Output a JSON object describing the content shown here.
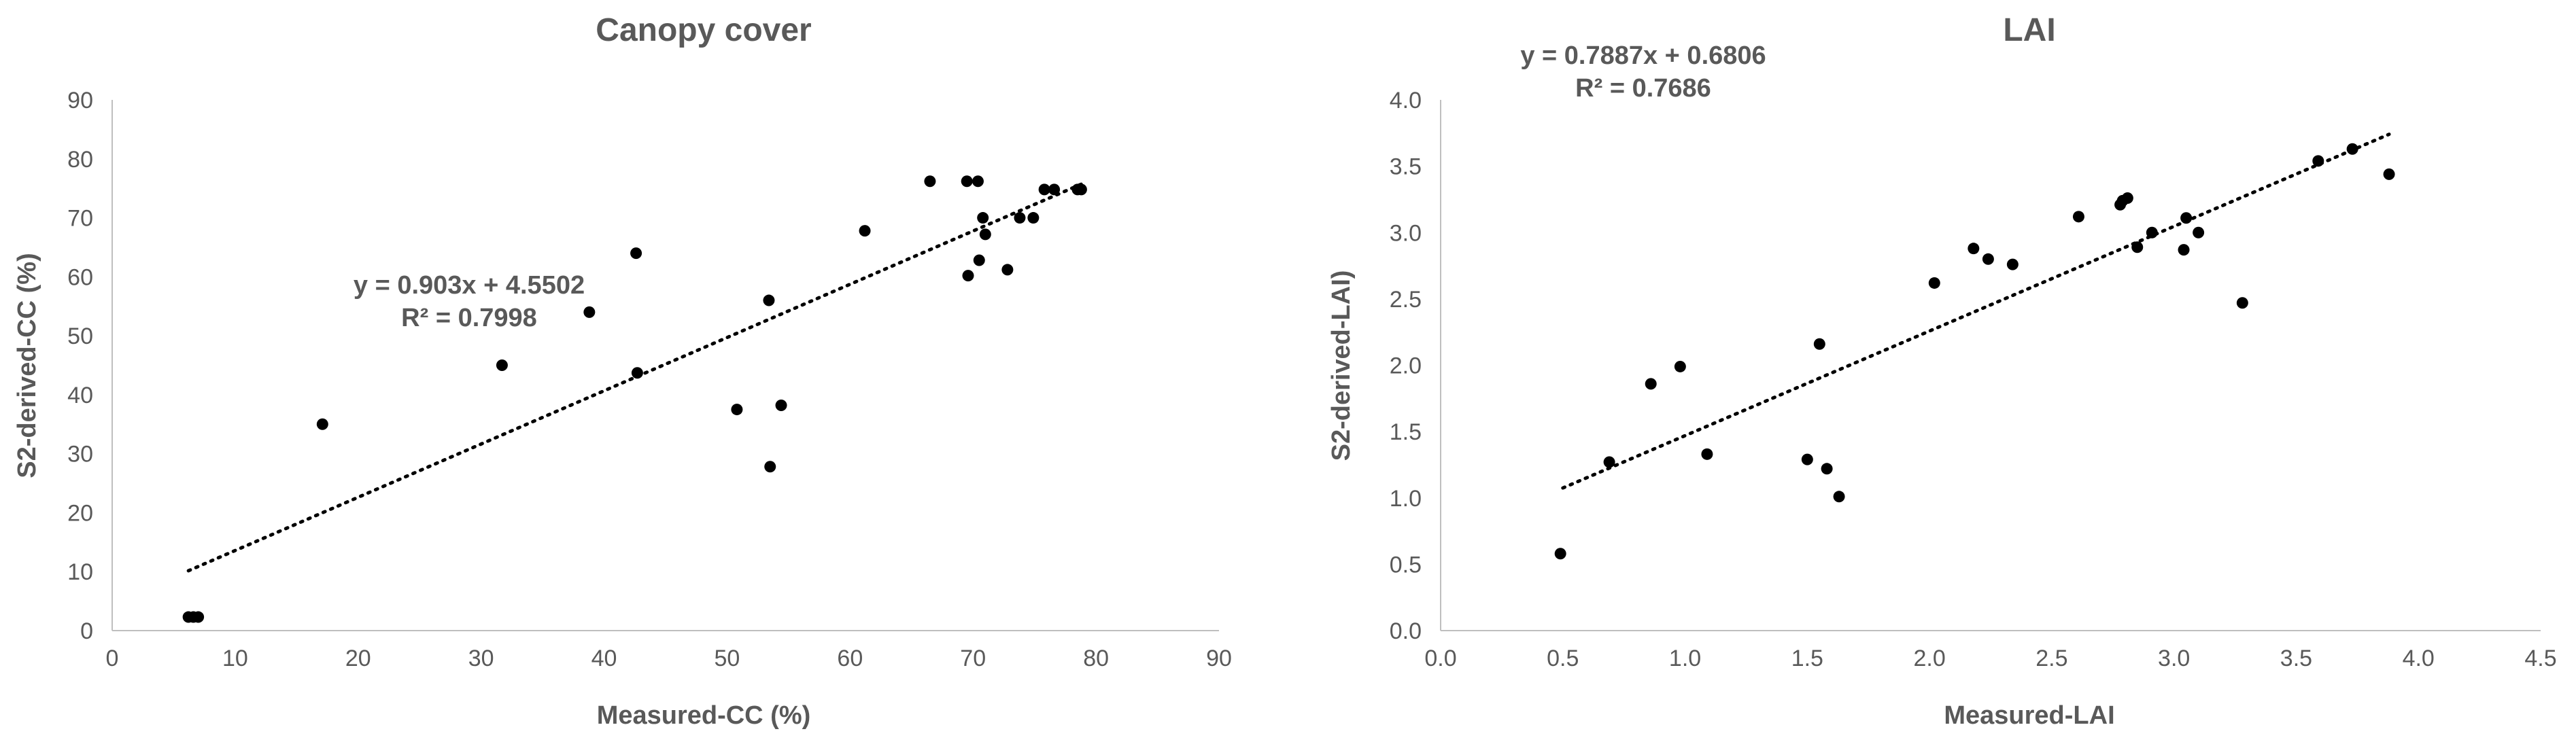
{
  "chart_data": [
    {
      "type": "scatter",
      "title": "Canopy cover",
      "xlabel": "Measured-CC (%)",
      "ylabel": "S2-derived-CC (%)",
      "xlim": [
        0,
        90
      ],
      "ylim": [
        0,
        90
      ],
      "xticks": [
        "0",
        "10",
        "20",
        "30",
        "40",
        "50",
        "60",
        "70",
        "80",
        "90"
      ],
      "yticks": [
        "0",
        "10",
        "20",
        "30",
        "40",
        "50",
        "60",
        "70",
        "80",
        "90"
      ],
      "grid": false,
      "trendline": {
        "slope": 0.903,
        "intercept": 4.5502,
        "x_range": [
          6.2,
          79
        ]
      },
      "equation": "y = 0.903x + 4.5502",
      "r2": "R² = 0.7998",
      "points": [
        {
          "x": 6.2,
          "y": 2.3
        },
        {
          "x": 6.6,
          "y": 2.3
        },
        {
          "x": 7.0,
          "y": 2.3
        },
        {
          "x": 17.1,
          "y": 35.0
        },
        {
          "x": 31.7,
          "y": 45.0
        },
        {
          "x": 38.8,
          "y": 54.0
        },
        {
          "x": 42.6,
          "y": 64.0
        },
        {
          "x": 42.7,
          "y": 43.7
        },
        {
          "x": 50.8,
          "y": 37.5
        },
        {
          "x": 53.4,
          "y": 56.0
        },
        {
          "x": 53.5,
          "y": 27.8
        },
        {
          "x": 54.4,
          "y": 38.2
        },
        {
          "x": 61.2,
          "y": 67.8
        },
        {
          "x": 66.5,
          "y": 76.2
        },
        {
          "x": 69.5,
          "y": 76.2
        },
        {
          "x": 69.6,
          "y": 60.2
        },
        {
          "x": 70.4,
          "y": 76.2
        },
        {
          "x": 70.5,
          "y": 62.8
        },
        {
          "x": 70.8,
          "y": 70.0
        },
        {
          "x": 71.0,
          "y": 67.2
        },
        {
          "x": 72.8,
          "y": 61.2
        },
        {
          "x": 73.8,
          "y": 70.0
        },
        {
          "x": 74.9,
          "y": 70.0
        },
        {
          "x": 75.8,
          "y": 74.8
        },
        {
          "x": 76.6,
          "y": 74.8
        },
        {
          "x": 78.5,
          "y": 74.8
        },
        {
          "x": 78.8,
          "y": 74.8
        }
      ]
    },
    {
      "type": "scatter",
      "title": "LAI",
      "xlabel": "Measured-LAI",
      "ylabel": "S2-derived-LAI)",
      "xlim": [
        0,
        4.5
      ],
      "ylim": [
        0,
        4.0
      ],
      "xticks": [
        "0.0",
        "0.5",
        "1.0",
        "1.5",
        "2.0",
        "2.5",
        "3.0",
        "3.5",
        "4.0",
        "4.5"
      ],
      "yticks": [
        "0.0",
        "0.5",
        "1.0",
        "1.5",
        "2.0",
        "2.5",
        "3.0",
        "3.5",
        "4.0"
      ],
      "grid": false,
      "trendline": {
        "slope": 0.7887,
        "intercept": 0.6806,
        "x_range": [
          0.5,
          3.88
        ]
      },
      "equation": "y = 0.7887x + 0.6806",
      "r2": "R² = 0.7686",
      "points": [
        {
          "x": 0.49,
          "y": 0.58
        },
        {
          "x": 0.69,
          "y": 1.27
        },
        {
          "x": 0.86,
          "y": 1.86
        },
        {
          "x": 0.98,
          "y": 1.99
        },
        {
          "x": 1.09,
          "y": 1.33
        },
        {
          "x": 1.5,
          "y": 1.29
        },
        {
          "x": 1.55,
          "y": 2.16
        },
        {
          "x": 1.58,
          "y": 1.22
        },
        {
          "x": 1.63,
          "y": 1.01
        },
        {
          "x": 2.02,
          "y": 2.62
        },
        {
          "x": 2.18,
          "y": 2.88
        },
        {
          "x": 2.24,
          "y": 2.8
        },
        {
          "x": 2.34,
          "y": 2.76
        },
        {
          "x": 2.61,
          "y": 3.12
        },
        {
          "x": 2.78,
          "y": 3.21
        },
        {
          "x": 2.79,
          "y": 3.24
        },
        {
          "x": 2.81,
          "y": 3.26
        },
        {
          "x": 2.85,
          "y": 2.89
        },
        {
          "x": 2.91,
          "y": 3.0
        },
        {
          "x": 3.04,
          "y": 2.87
        },
        {
          "x": 3.05,
          "y": 3.11
        },
        {
          "x": 3.1,
          "y": 3.0
        },
        {
          "x": 3.28,
          "y": 2.47
        },
        {
          "x": 3.59,
          "y": 3.54
        },
        {
          "x": 3.73,
          "y": 3.63
        },
        {
          "x": 3.88,
          "y": 3.44
        }
      ]
    }
  ]
}
